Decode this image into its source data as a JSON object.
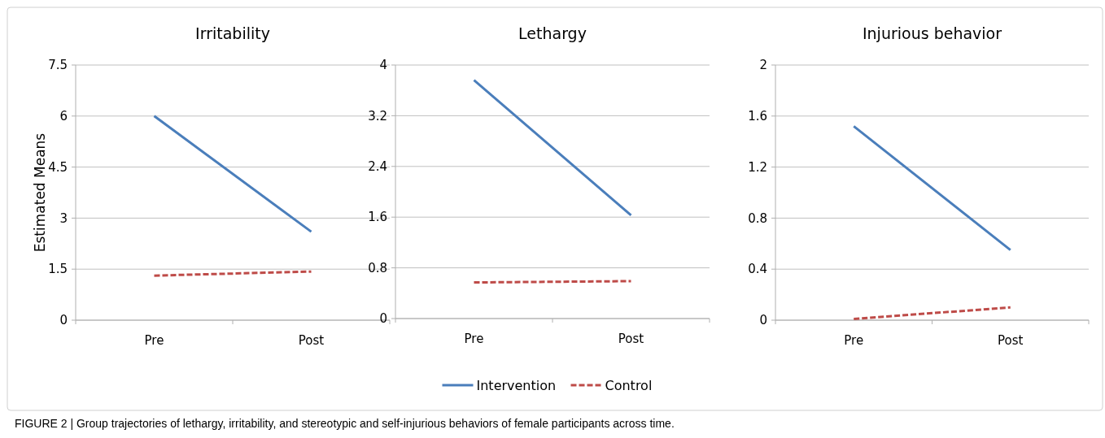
{
  "chart_data": [
    {
      "type": "line",
      "title": "Irritability",
      "ylabel": "Estimated Means",
      "categories": [
        "Pre",
        "Post"
      ],
      "ylim": [
        0,
        7.5
      ],
      "yticks": [
        0,
        1.5,
        3,
        4.5,
        6,
        7.5
      ],
      "grid": "y",
      "annotations": [
        "FIGURE 2 | Group trajectories of lethargy, irritability, and stereotypic and self-injurious behaviors of female participants across time."
      ],
      "series": [
        {
          "color": "#4a7ebb",
          "values": [
            6.0,
            2.6
          ],
          "line_style": "solid"
        },
        {
          "color": "#be4b48",
          "values": [
            1.31,
            1.43
          ],
          "line_style": "dashed"
        }
      ]
    },
    {
      "type": "line",
      "title": "Lethargy",
      "categories": [
        "Pre",
        "Post"
      ],
      "ylim": [
        0,
        4
      ],
      "yticks": [
        0,
        0.8,
        1.6,
        2.4,
        3.2,
        4
      ],
      "grid": "y",
      "legend": "bottom",
      "series": [
        {
          "name": "Intervention",
          "color": "#4a7ebb",
          "values": [
            3.76,
            1.63
          ],
          "line_style": "solid"
        },
        {
          "name": "Control",
          "color": "#be4b48",
          "values": [
            0.57,
            0.59
          ],
          "line_style": "dashed"
        }
      ]
    },
    {
      "type": "line",
      "title": "Injurious behavior",
      "categories": [
        "Pre",
        "Post"
      ],
      "ylim": [
        0,
        2
      ],
      "yticks": [
        0,
        0.4,
        0.8,
        1.2,
        1.6,
        2
      ],
      "grid": "y",
      "series": [
        {
          "color": "#4a7ebb",
          "values": [
            1.52,
            0.55
          ],
          "line_style": "solid"
        },
        {
          "color": "#be4b48",
          "values": [
            0.01,
            0.1
          ],
          "line_style": "dashed"
        }
      ]
    }
  ]
}
